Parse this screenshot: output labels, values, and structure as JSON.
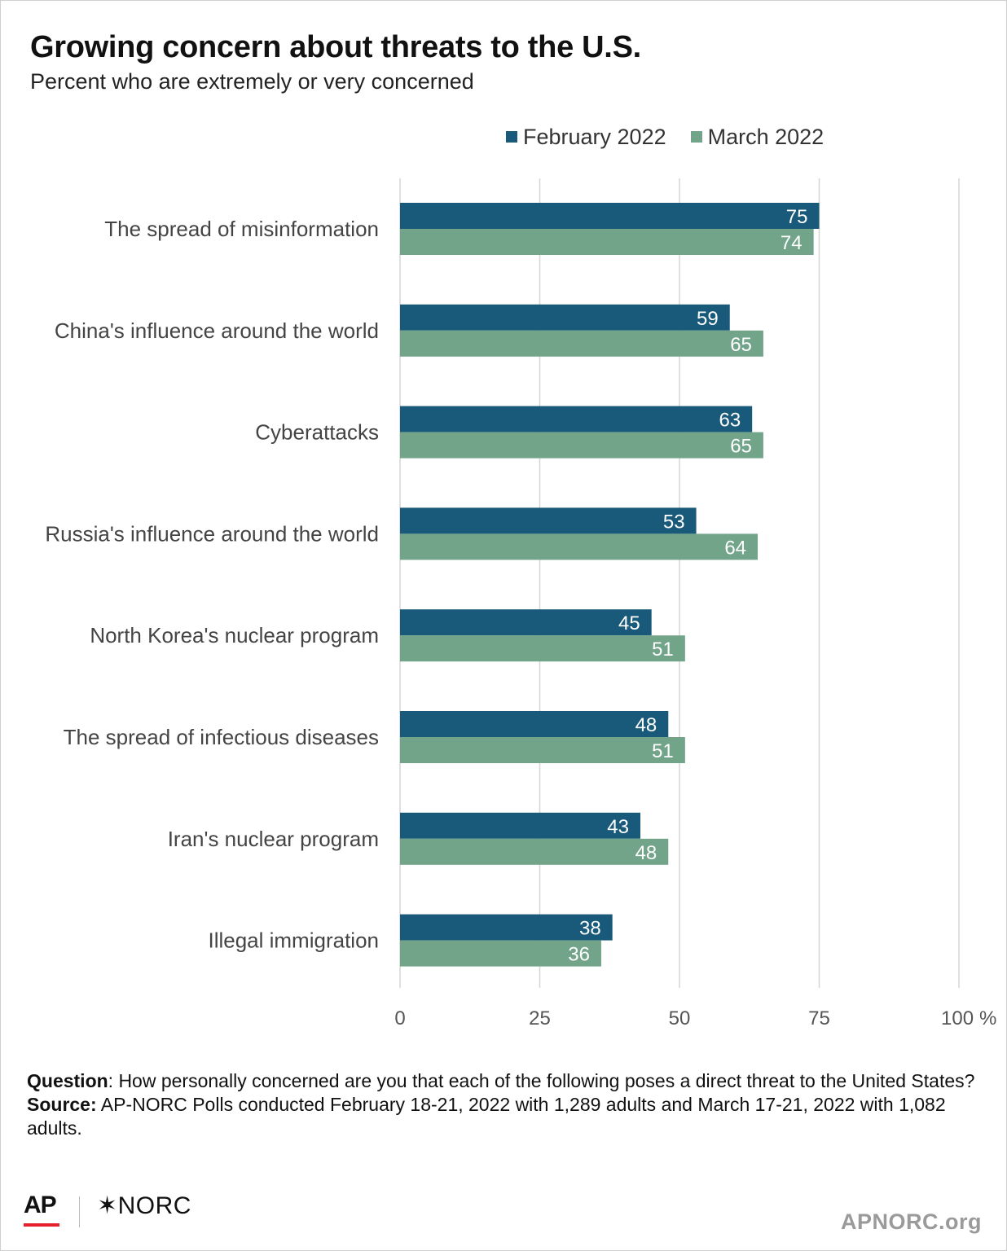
{
  "header": {
    "title": "Growing concern about threats to the U.S.",
    "subtitle": "Percent who are extremely or very concerned"
  },
  "colors": {
    "series1": "#195a7a",
    "series2": "#72a48a",
    "grid": "#d6d6d6"
  },
  "chart_data": {
    "type": "bar",
    "orientation": "horizontal",
    "categories": [
      "The spread of misinformation",
      "China's influence around the world",
      "Cyberattacks",
      "Russia's influence around the world",
      "North Korea's nuclear program",
      "The spread of infectious diseases",
      "Iran's nuclear program",
      "Illegal immigration"
    ],
    "series": [
      {
        "name": "February 2022",
        "values": [
          75,
          59,
          63,
          53,
          45,
          48,
          43,
          38
        ]
      },
      {
        "name": "March 2022",
        "values": [
          74,
          65,
          65,
          64,
          51,
          51,
          48,
          36
        ]
      }
    ],
    "xlim": [
      0,
      100
    ],
    "ticks": [
      0,
      25,
      50,
      75,
      100
    ],
    "tick_labels": [
      "0",
      "25",
      "50",
      "75",
      "100"
    ],
    "unit": "%",
    "grid": true,
    "legend_position": "top-right",
    "data_labels": true
  },
  "notes": {
    "question_label": "Question",
    "question_text": ": How personally concerned are you that each of the following poses a direct threat to the United States?",
    "source_label": "Source:",
    "source_text": " AP-NORC Polls conducted February 18-21, 2022 with 1,289 adults and March 17-21, 2022 with 1,082 adults."
  },
  "footer": {
    "logo_ap": "AP",
    "logo_norc": "✶NORC",
    "site": "APNORC.org"
  }
}
